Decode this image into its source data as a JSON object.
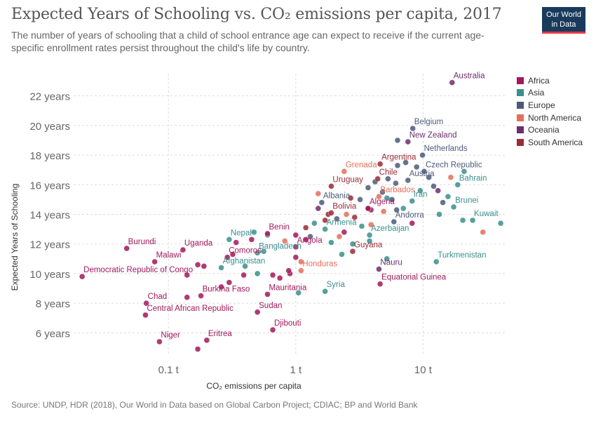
{
  "header": {
    "title": "Expected Years of Schooling vs. CO₂ emissions per capita, 2017",
    "subtitle": "The number of years of schooling that a child of school entrance age can expect to receive if the current age-specific enrollment rates persist throughout the child's life by country.",
    "logo_line1": "Our World",
    "logo_line2": "in Data"
  },
  "footer": {
    "source": "Source: UNDP, HDR (2018), Our World in Data based on Global Carbon Project; CDIAC; BP and World Bank"
  },
  "legend": [
    {
      "name": "Africa",
      "color": "#a2185b"
    },
    {
      "name": "Asia",
      "color": "#3a8f8c"
    },
    {
      "name": "Europe",
      "color": "#4c5a7a"
    },
    {
      "name": "North America",
      "color": "#e56e5a"
    },
    {
      "name": "Oceania",
      "color": "#6d2e6e"
    },
    {
      "name": "South America",
      "color": "#9a2a36"
    }
  ],
  "chart_data": {
    "type": "scatter",
    "title": "Expected Years of Schooling vs. CO₂ emissions per capita, 2017",
    "xlabel": "CO₂ emissions per capita",
    "ylabel": "Expected Years of Schooling",
    "x_scale": "log",
    "xlim": [
      0.018,
      45
    ],
    "ylim": [
      4.5,
      23.5
    ],
    "x_ticks": [
      {
        "value": 0.1,
        "label": "0.1 t"
      },
      {
        "value": 1,
        "label": "1 t"
      },
      {
        "value": 10,
        "label": "10 t"
      }
    ],
    "y_ticks": [
      {
        "value": 6,
        "label": "6 years"
      },
      {
        "value": 8,
        "label": "8 years"
      },
      {
        "value": 10,
        "label": "10 years"
      },
      {
        "value": 12,
        "label": "12 years"
      },
      {
        "value": 14,
        "label": "14 years"
      },
      {
        "value": 16,
        "label": "16 years"
      },
      {
        "value": 18,
        "label": "18 years"
      },
      {
        "value": 20,
        "label": "20 years"
      },
      {
        "value": 22,
        "label": "22 years"
      }
    ],
    "grid": true,
    "legend_position": "right",
    "labeled_points": [
      {
        "label": "Australia",
        "x": 16.9,
        "y": 22.9,
        "region": "Oceania"
      },
      {
        "label": "Belgium",
        "x": 8.3,
        "y": 19.8,
        "region": "Europe"
      },
      {
        "label": "New Zealand",
        "x": 7.6,
        "y": 18.9,
        "region": "Oceania"
      },
      {
        "label": "Netherlands",
        "x": 9.9,
        "y": 18.0,
        "region": "Europe"
      },
      {
        "label": "Argentina",
        "x": 4.6,
        "y": 17.4,
        "region": "South America"
      },
      {
        "label": "Czech Republic",
        "x": 10.2,
        "y": 16.9,
        "region": "Europe"
      },
      {
        "label": "Grenada",
        "x": 2.4,
        "y": 16.9,
        "region": "North America"
      },
      {
        "label": "Bahrain",
        "x": 18.7,
        "y": 16.0,
        "region": "Asia"
      },
      {
        "label": "Austria",
        "x": 7.6,
        "y": 16.3,
        "region": "Europe"
      },
      {
        "label": "Chile",
        "x": 4.4,
        "y": 16.4,
        "region": "South America"
      },
      {
        "label": "Uruguay",
        "x": 1.9,
        "y": 15.9,
        "region": "South America"
      },
      {
        "label": "Barbados",
        "x": 4.5,
        "y": 15.2,
        "region": "North America"
      },
      {
        "label": "Iran",
        "x": 8.2,
        "y": 14.9,
        "region": "Asia"
      },
      {
        "label": "Albania",
        "x": 1.6,
        "y": 14.8,
        "region": "Europe"
      },
      {
        "label": "Brunei",
        "x": 17.4,
        "y": 14.5,
        "region": "Asia"
      },
      {
        "label": "Algeria",
        "x": 3.7,
        "y": 14.4,
        "region": "Africa"
      },
      {
        "label": "Bolivia",
        "x": 1.9,
        "y": 14.1,
        "region": "South America"
      },
      {
        "label": "Kuwait",
        "x": 24.5,
        "y": 13.6,
        "region": "Asia"
      },
      {
        "label": "Andorra",
        "x": 5.9,
        "y": 13.5,
        "region": "Europe"
      },
      {
        "label": "Armenia",
        "x": 1.7,
        "y": 13.0,
        "region": "Asia"
      },
      {
        "label": "Azerbaijan",
        "x": 3.8,
        "y": 12.6,
        "region": "Asia"
      },
      {
        "label": "Benin",
        "x": 0.6,
        "y": 12.7,
        "region": "Africa"
      },
      {
        "label": "Nepal",
        "x": 0.3,
        "y": 12.3,
        "region": "Asia"
      },
      {
        "label": "Angola",
        "x": 1.0,
        "y": 11.8,
        "region": "Africa"
      },
      {
        "label": "Burundi",
        "x": 0.047,
        "y": 11.7,
        "region": "Africa"
      },
      {
        "label": "Uganda",
        "x": 0.13,
        "y": 11.6,
        "region": "Africa"
      },
      {
        "label": "Bangladesh",
        "x": 0.5,
        "y": 11.4,
        "region": "Asia"
      },
      {
        "label": "Guyana",
        "x": 2.8,
        "y": 11.5,
        "region": "South America"
      },
      {
        "label": "Comoros",
        "x": 0.29,
        "y": 11.1,
        "region": "Africa"
      },
      {
        "label": "Turkmenistan",
        "x": 12.7,
        "y": 10.8,
        "region": "Asia"
      },
      {
        "label": "Malawi",
        "x": 0.078,
        "y": 10.8,
        "region": "Africa"
      },
      {
        "label": "Afghanistan",
        "x": 0.26,
        "y": 10.4,
        "region": "Asia"
      },
      {
        "label": "Honduras",
        "x": 1.1,
        "y": 10.2,
        "region": "North America"
      },
      {
        "label": "Nauru",
        "x": 4.5,
        "y": 10.3,
        "region": "Oceania"
      },
      {
        "label": "Democratic Republic of Congo",
        "x": 0.021,
        "y": 9.8,
        "region": "Africa"
      },
      {
        "label": "Equatorial Guinea",
        "x": 4.6,
        "y": 9.3,
        "region": "Africa"
      },
      {
        "label": "Mauritania",
        "x": 0.6,
        "y": 8.6,
        "region": "Africa"
      },
      {
        "label": "Syria",
        "x": 1.7,
        "y": 8.8,
        "region": "Asia"
      },
      {
        "label": "Burkina Faso",
        "x": 0.18,
        "y": 8.5,
        "region": "Africa"
      },
      {
        "label": "Chad",
        "x": 0.067,
        "y": 8.0,
        "region": "Africa"
      },
      {
        "label": "Central African Republic",
        "x": 0.066,
        "y": 7.2,
        "region": "Africa"
      },
      {
        "label": "Sudan",
        "x": 0.5,
        "y": 7.4,
        "region": "Africa"
      },
      {
        "label": "Djibouti",
        "x": 0.66,
        "y": 6.2,
        "region": "Africa"
      },
      {
        "label": "Niger",
        "x": 0.085,
        "y": 5.4,
        "region": "Africa"
      },
      {
        "label": "Eritrea",
        "x": 0.2,
        "y": 5.5,
        "region": "Africa"
      }
    ],
    "unlabeled_points": [
      {
        "x": 0.17,
        "y": 4.9,
        "region": "Africa"
      },
      {
        "x": 0.14,
        "y": 8.4,
        "region": "Africa"
      },
      {
        "x": 0.17,
        "y": 10.6,
        "region": "Africa"
      },
      {
        "x": 0.19,
        "y": 10.5,
        "region": "Africa"
      },
      {
        "x": 0.14,
        "y": 9.9,
        "region": "Africa"
      },
      {
        "x": 0.34,
        "y": 12.1,
        "region": "Africa"
      },
      {
        "x": 0.39,
        "y": 9.9,
        "region": "Africa"
      },
      {
        "x": 0.3,
        "y": 9.4,
        "region": "Africa"
      },
      {
        "x": 0.26,
        "y": 9.1,
        "region": "Africa"
      },
      {
        "x": 0.66,
        "y": 9.9,
        "region": "Africa"
      },
      {
        "x": 0.75,
        "y": 9.7,
        "region": "Africa"
      },
      {
        "x": 0.9,
        "y": 10.0,
        "region": "Africa"
      },
      {
        "x": 0.32,
        "y": 11.3,
        "region": "Africa"
      },
      {
        "x": 1.0,
        "y": 11.1,
        "region": "Africa"
      },
      {
        "x": 0.88,
        "y": 10.2,
        "region": "Africa"
      },
      {
        "x": 1.0,
        "y": 12.6,
        "region": "Africa"
      },
      {
        "x": 0.45,
        "y": 12.3,
        "region": "Africa"
      },
      {
        "x": 2.4,
        "y": 12.8,
        "region": "Africa"
      },
      {
        "x": 3.9,
        "y": 14.3,
        "region": "Africa"
      },
      {
        "x": 1.2,
        "y": 12.3,
        "region": "Africa"
      },
      {
        "x": 8.2,
        "y": 13.4,
        "region": "Africa"
      },
      {
        "x": 0.4,
        "y": 10.5,
        "region": "Asia"
      },
      {
        "x": 0.5,
        "y": 10.0,
        "region": "Asia"
      },
      {
        "x": 0.56,
        "y": 11.5,
        "region": "Asia"
      },
      {
        "x": 0.6,
        "y": 12.6,
        "region": "Asia"
      },
      {
        "x": 0.47,
        "y": 12.8,
        "region": "Asia"
      },
      {
        "x": 1.05,
        "y": 8.7,
        "region": "Asia"
      },
      {
        "x": 1.4,
        "y": 13.4,
        "region": "Asia"
      },
      {
        "x": 1.9,
        "y": 12.1,
        "region": "Asia"
      },
      {
        "x": 2.3,
        "y": 11.3,
        "region": "Asia"
      },
      {
        "x": 2.8,
        "y": 12.0,
        "region": "Asia"
      },
      {
        "x": 3.3,
        "y": 13.2,
        "region": "Asia"
      },
      {
        "x": 3.8,
        "y": 12.2,
        "region": "Asia"
      },
      {
        "x": 5.2,
        "y": 11.0,
        "region": "Asia"
      },
      {
        "x": 5.2,
        "y": 15.1,
        "region": "Asia"
      },
      {
        "x": 7.0,
        "y": 14.4,
        "region": "Asia"
      },
      {
        "x": 9.5,
        "y": 15.6,
        "region": "Asia"
      },
      {
        "x": 13.4,
        "y": 14.0,
        "region": "Asia"
      },
      {
        "x": 15.7,
        "y": 15.2,
        "region": "Asia"
      },
      {
        "x": 20.5,
        "y": 13.6,
        "region": "Asia"
      },
      {
        "x": 21.0,
        "y": 16.9,
        "region": "Asia"
      },
      {
        "x": 40.7,
        "y": 13.4,
        "region": "Asia"
      },
      {
        "x": 1.3,
        "y": 12.5,
        "region": "Europe"
      },
      {
        "x": 2.1,
        "y": 13.7,
        "region": "Europe"
      },
      {
        "x": 3.2,
        "y": 15.0,
        "region": "Europe"
      },
      {
        "x": 3.7,
        "y": 15.8,
        "region": "Europe"
      },
      {
        "x": 4.2,
        "y": 16.2,
        "region": "Europe"
      },
      {
        "x": 4.8,
        "y": 15.5,
        "region": "Europe"
      },
      {
        "x": 5.3,
        "y": 16.4,
        "region": "Europe"
      },
      {
        "x": 5.7,
        "y": 15.0,
        "region": "Europe"
      },
      {
        "x": 6.1,
        "y": 16.1,
        "region": "Europe"
      },
      {
        "x": 6.3,
        "y": 17.3,
        "region": "Europe"
      },
      {
        "x": 6.3,
        "y": 19.0,
        "region": "Europe"
      },
      {
        "x": 7.3,
        "y": 17.5,
        "region": "Europe"
      },
      {
        "x": 8.9,
        "y": 17.2,
        "region": "Europe"
      },
      {
        "x": 11.1,
        "y": 16.5,
        "region": "Europe"
      },
      {
        "x": 12.1,
        "y": 15.9,
        "region": "Europe"
      },
      {
        "x": 14.3,
        "y": 14.8,
        "region": "Europe"
      },
      {
        "x": 6.2,
        "y": 14.3,
        "region": "Europe"
      },
      {
        "x": 0.82,
        "y": 12.2,
        "region": "North America"
      },
      {
        "x": 1.1,
        "y": 10.8,
        "region": "North America"
      },
      {
        "x": 1.5,
        "y": 15.4,
        "region": "North America"
      },
      {
        "x": 2.2,
        "y": 12.5,
        "region": "North America"
      },
      {
        "x": 2.5,
        "y": 14.0,
        "region": "North America"
      },
      {
        "x": 3.9,
        "y": 13.3,
        "region": "North America"
      },
      {
        "x": 4.9,
        "y": 14.2,
        "region": "North America"
      },
      {
        "x": 16.5,
        "y": 16.5,
        "region": "North America"
      },
      {
        "x": 29.5,
        "y": 12.8,
        "region": "North America"
      },
      {
        "x": 1.5,
        "y": 14.4,
        "region": "Oceania"
      },
      {
        "x": 13.1,
        "y": 15.6,
        "region": "Oceania"
      },
      {
        "x": 1.2,
        "y": 13.1,
        "region": "South America"
      },
      {
        "x": 1.8,
        "y": 14.0,
        "region": "South America"
      },
      {
        "x": 2.7,
        "y": 15.1,
        "region": "South America"
      },
      {
        "x": 3.7,
        "y": 14.4,
        "region": "South America"
      },
      {
        "x": 1.7,
        "y": 13.6,
        "region": "South America"
      },
      {
        "x": 2.9,
        "y": 13.8,
        "region": "South America"
      }
    ]
  }
}
